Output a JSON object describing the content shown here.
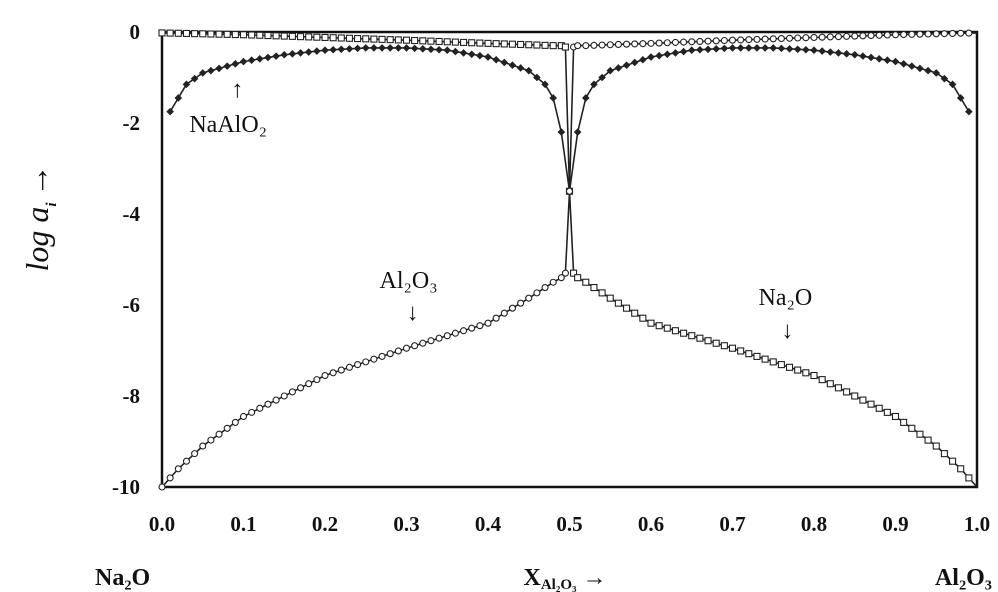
{
  "chart_data": {
    "type": "line",
    "xlim": [
      0.0,
      1.0
    ],
    "ylim": [
      -10,
      0
    ],
    "x_ticks": [
      "0.0",
      "0.1",
      "0.2",
      "0.3",
      "0.4",
      "0.5",
      "0.6",
      "0.7",
      "0.8",
      "0.9",
      "1.0"
    ],
    "y_ticks": [
      "0",
      "-2",
      "-4",
      "-6",
      "-8",
      "-10"
    ],
    "ylabel": {
      "main": "log a",
      "sub": "i",
      "arrow": "→"
    },
    "xlabel": {
      "main": "X",
      "sub": "Al₂O₃",
      "arrow": "→"
    },
    "x_end_labels": {
      "left": "Na₂O",
      "right": "Al₂O₃"
    },
    "grid": false,
    "legend": "none",
    "annotations": [
      {
        "text": "NaAlO₂",
        "arrow": "↑",
        "x": 0.09,
        "y": -1.3
      },
      {
        "text": "Al₂O₃",
        "arrow": "↓",
        "x": 0.305,
        "y": -6.85
      },
      {
        "text": "Na₂O",
        "arrow": "↓",
        "x": 0.76,
        "y": -7.2
      }
    ],
    "series": [
      {
        "marker": "diamond",
        "color": "#222222",
        "x": [
          0.01,
          0.03,
          0.05,
          0.1,
          0.15,
          0.2,
          0.25,
          0.3,
          0.35,
          0.4,
          0.45,
          0.47,
          0.48,
          0.49,
          0.5,
          0.51,
          0.52,
          0.53,
          0.55,
          0.6,
          0.65,
          0.7,
          0.75,
          0.8,
          0.85,
          0.9,
          0.95,
          0.97,
          0.99
        ],
        "y": [
          -1.75,
          -1.15,
          -0.9,
          -0.65,
          -0.5,
          -0.4,
          -0.35,
          -0.35,
          -0.4,
          -0.55,
          -0.85,
          -1.15,
          -1.45,
          -2.2,
          -3.5,
          -2.2,
          -1.45,
          -1.15,
          -0.85,
          -0.55,
          -0.4,
          -0.35,
          -0.35,
          -0.4,
          -0.5,
          -0.65,
          -0.9,
          -1.15,
          -1.75
        ]
      },
      {
        "marker": "square",
        "color": "#222222",
        "x": [
          0.0,
          0.1,
          0.2,
          0.3,
          0.4,
          0.45,
          0.48,
          0.49,
          0.495,
          0.5,
          0.505,
          0.51,
          0.52,
          0.55,
          0.6,
          0.7,
          0.8,
          0.9,
          0.95,
          0.98,
          0.99,
          1.0
        ],
        "y": [
          -0.02,
          -0.06,
          -0.12,
          -0.18,
          -0.25,
          -0.28,
          -0.3,
          -0.3,
          -0.33,
          -3.5,
          -5.3,
          -5.4,
          -5.5,
          -5.85,
          -6.4,
          -6.95,
          -7.55,
          -8.45,
          -9.1,
          -9.6,
          -9.8,
          -10.0
        ]
      },
      {
        "marker": "circle",
        "color": "#222222",
        "x": [
          0.0,
          0.01,
          0.02,
          0.05,
          0.1,
          0.2,
          0.3,
          0.4,
          0.45,
          0.48,
          0.49,
          0.495,
          0.5,
          0.505,
          0.51,
          0.52,
          0.55,
          0.6,
          0.7,
          0.8,
          0.9,
          1.0
        ],
        "y": [
          -10.0,
          -9.8,
          -9.6,
          -9.1,
          -8.45,
          -7.55,
          -6.95,
          -6.4,
          -5.85,
          -5.5,
          -5.4,
          -5.3,
          -3.5,
          -0.33,
          -0.3,
          -0.3,
          -0.28,
          -0.25,
          -0.18,
          -0.12,
          -0.06,
          -0.02
        ]
      }
    ]
  }
}
